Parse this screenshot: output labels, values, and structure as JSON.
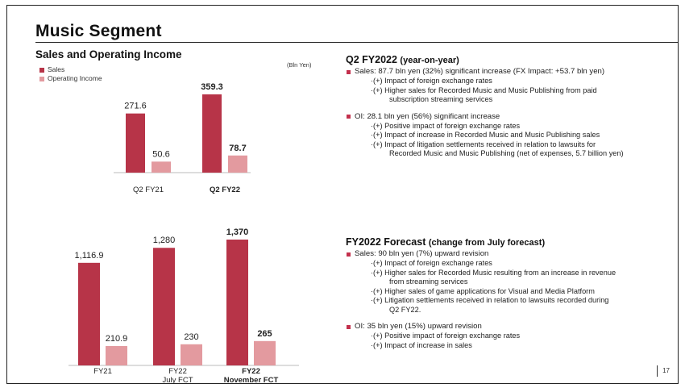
{
  "title": "Music Segment",
  "chart_heading": "Sales and Operating Income",
  "unit_label": "(Bln Yen)",
  "colors": {
    "sales": "#b73448",
    "oi": "#e39a9f",
    "bullet": "#c3304d"
  },
  "chart_data": [
    {
      "type": "bar",
      "categories": [
        "Q2 FY21",
        "Q2 FY22"
      ],
      "category_bold": [
        false,
        true
      ],
      "series": [
        {
          "name": "Sales",
          "values": [
            271.6,
            359.3
          ],
          "labels": [
            "271.6",
            "359.3"
          ]
        },
        {
          "name": "Operating Income",
          "values": [
            50.6,
            78.7
          ],
          "labels": [
            "50.6",
            "78.7"
          ]
        }
      ],
      "label_bold": [
        false,
        true
      ],
      "ylim": [
        0,
        359.3
      ]
    },
    {
      "type": "bar",
      "categories": [
        "FY21",
        "FY22\nJuly FCT",
        "FY22\nNovember FCT"
      ],
      "category_bold": [
        false,
        false,
        true
      ],
      "series": [
        {
          "name": "Sales",
          "values": [
            1116.9,
            1280,
            1370
          ],
          "labels": [
            "1,116.9",
            "1,280",
            "1,370"
          ]
        },
        {
          "name": "Operating Income",
          "values": [
            210.9,
            230,
            265
          ],
          "labels": [
            "210.9",
            "230",
            "265"
          ]
        }
      ],
      "label_bold": [
        false,
        false,
        true
      ],
      "ylim": [
        0,
        1370
      ]
    }
  ],
  "q2": {
    "heading": "Q2 FY2022",
    "heading_sub": "(year-on-year)",
    "sales": {
      "text": "Sales: 87.7 bln yen (32%) significant increase (FX Impact: +53.7 bln yen)",
      "items": [
        [
          "·(+) Impact of foreign exchange rates"
        ],
        [
          "·(+) Higher sales for Recorded Music and Music Publishing from paid",
          "subscription streaming services"
        ]
      ]
    },
    "oi": {
      "text": "OI: 28.1 bln yen (56%) significant increase",
      "items": [
        [
          "·(+) Positive impact of foreign exchange rates"
        ],
        [
          "·(+) Impact of increase in Recorded Music and Music Publishing sales"
        ],
        [
          "·(+) Impact of litigation settlements received in relation to lawsuits for",
          "Recorded Music and Music Publishing (net of expenses, 5.7 billion yen)"
        ]
      ]
    }
  },
  "forecast": {
    "heading": "FY2022 Forecast",
    "heading_sub": "(change from July forecast)",
    "sales": {
      "text": "Sales: 90 bln yen (7%) upward revision",
      "items": [
        [
          "·(+) Impact of foreign exchange rates"
        ],
        [
          "·(+) Higher sales for Recorded Music resulting from an increase in revenue",
          "from streaming services"
        ],
        [
          "·(+) Higher sales of game applications for Visual and Media Platform"
        ],
        [
          "·(+) Litigation settlements received in relation to lawsuits recorded during",
          "Q2 FY22."
        ]
      ]
    },
    "oi": {
      "text": "OI: 35 bln yen (15%) upward revision",
      "items": [
        [
          "·(+) Positive impact of foreign exchange rates"
        ],
        [
          "·(+) Impact of increase in sales"
        ]
      ]
    }
  },
  "page_number": "17"
}
